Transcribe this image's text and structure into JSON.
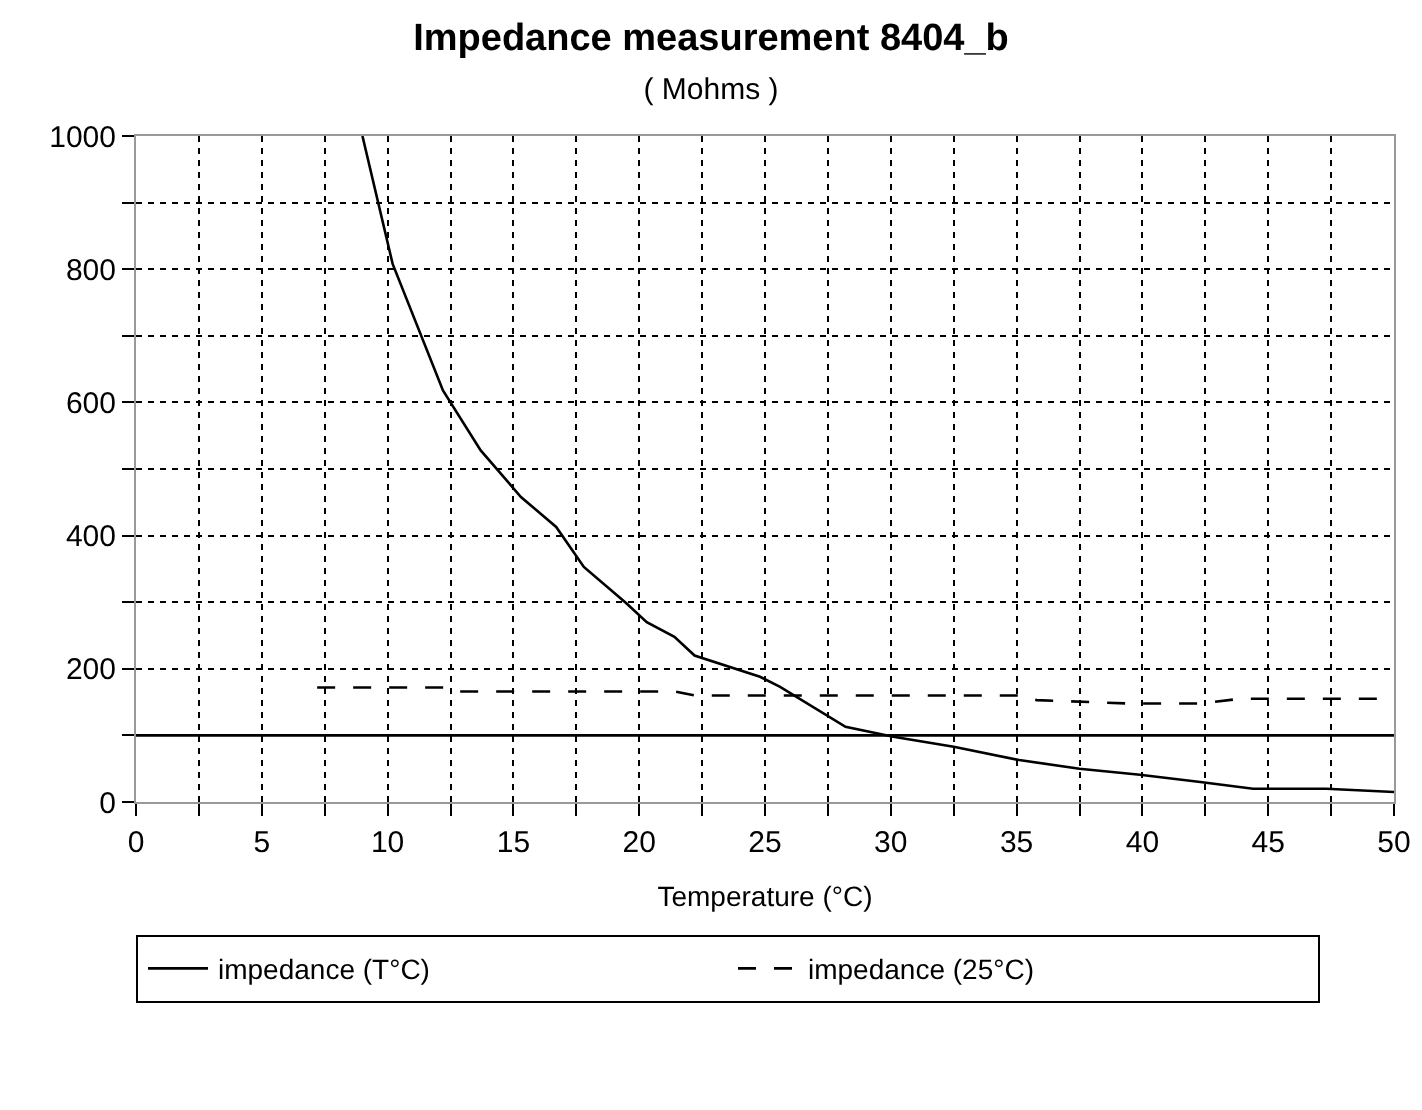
{
  "chart_data": {
    "type": "line",
    "title": "Impedance measurement 8404_b",
    "subtitle": "( Mohms )",
    "xlabel": "Temperature (°C)",
    "series": [
      {
        "name": "impedance (T°C)",
        "color": "#000000",
        "line_style": "solid",
        "x": [
          9,
          10.2,
          12.2,
          13.7,
          15.3,
          16.7,
          17.8,
          19.5,
          20.3,
          21.4,
          22.2,
          24.8,
          25.6,
          28.2,
          30.1,
          32.5,
          35.1,
          37.5,
          39.9,
          42.3,
          44.4,
          47.3,
          50
        ],
        "values": [
          1000,
          808,
          618,
          528,
          458,
          413,
          353,
          298,
          270,
          248,
          220,
          188,
          173,
          113,
          98,
          83,
          63,
          50,
          41,
          30,
          20,
          20,
          15
        ]
      },
      {
        "name": "impedance (25°C)",
        "color": "#000000",
        "line_style": "dashed",
        "x": [
          7.2,
          12.3,
          12.6,
          21.4,
          22.2,
          35.1,
          35.8,
          39.4,
          42.3,
          43.9,
          50
        ],
        "values": [
          172,
          172,
          166,
          166,
          160,
          160,
          153,
          148,
          148,
          155,
          155
        ]
      }
    ],
    "ref_lines": [
      {
        "axis": "y",
        "value": 100,
        "color": "#000000",
        "line_style": "solid"
      }
    ],
    "xlim": [
      0,
      50
    ],
    "ylim": [
      0,
      1000
    ],
    "xticks": [
      0,
      {
        "value": 2.5,
        "label": null
      },
      5,
      {
        "value": 7.5,
        "label": null
      },
      10,
      {
        "value": 12.5,
        "label": null
      },
      15,
      {
        "value": 17.5,
        "label": null
      },
      20,
      {
        "value": 22.5,
        "label": null
      },
      25,
      {
        "value": 27.5,
        "label": null
      },
      30,
      {
        "value": 32.5,
        "label": null
      },
      35,
      {
        "value": 37.5,
        "label": null
      },
      40,
      {
        "value": 42.5,
        "label": null
      },
      45,
      {
        "value": 47.5,
        "label": null
      },
      50
    ],
    "yticks": [
      0,
      {
        "value": 100,
        "label": null
      },
      200,
      {
        "value": 300,
        "label": null
      },
      400,
      {
        "value": 500,
        "label": null
      },
      600,
      {
        "value": 700,
        "label": null
      },
      800,
      {
        "value": 900,
        "label": null
      },
      1000
    ],
    "grid": true,
    "legend": "bottom",
    "marker": "none"
  }
}
